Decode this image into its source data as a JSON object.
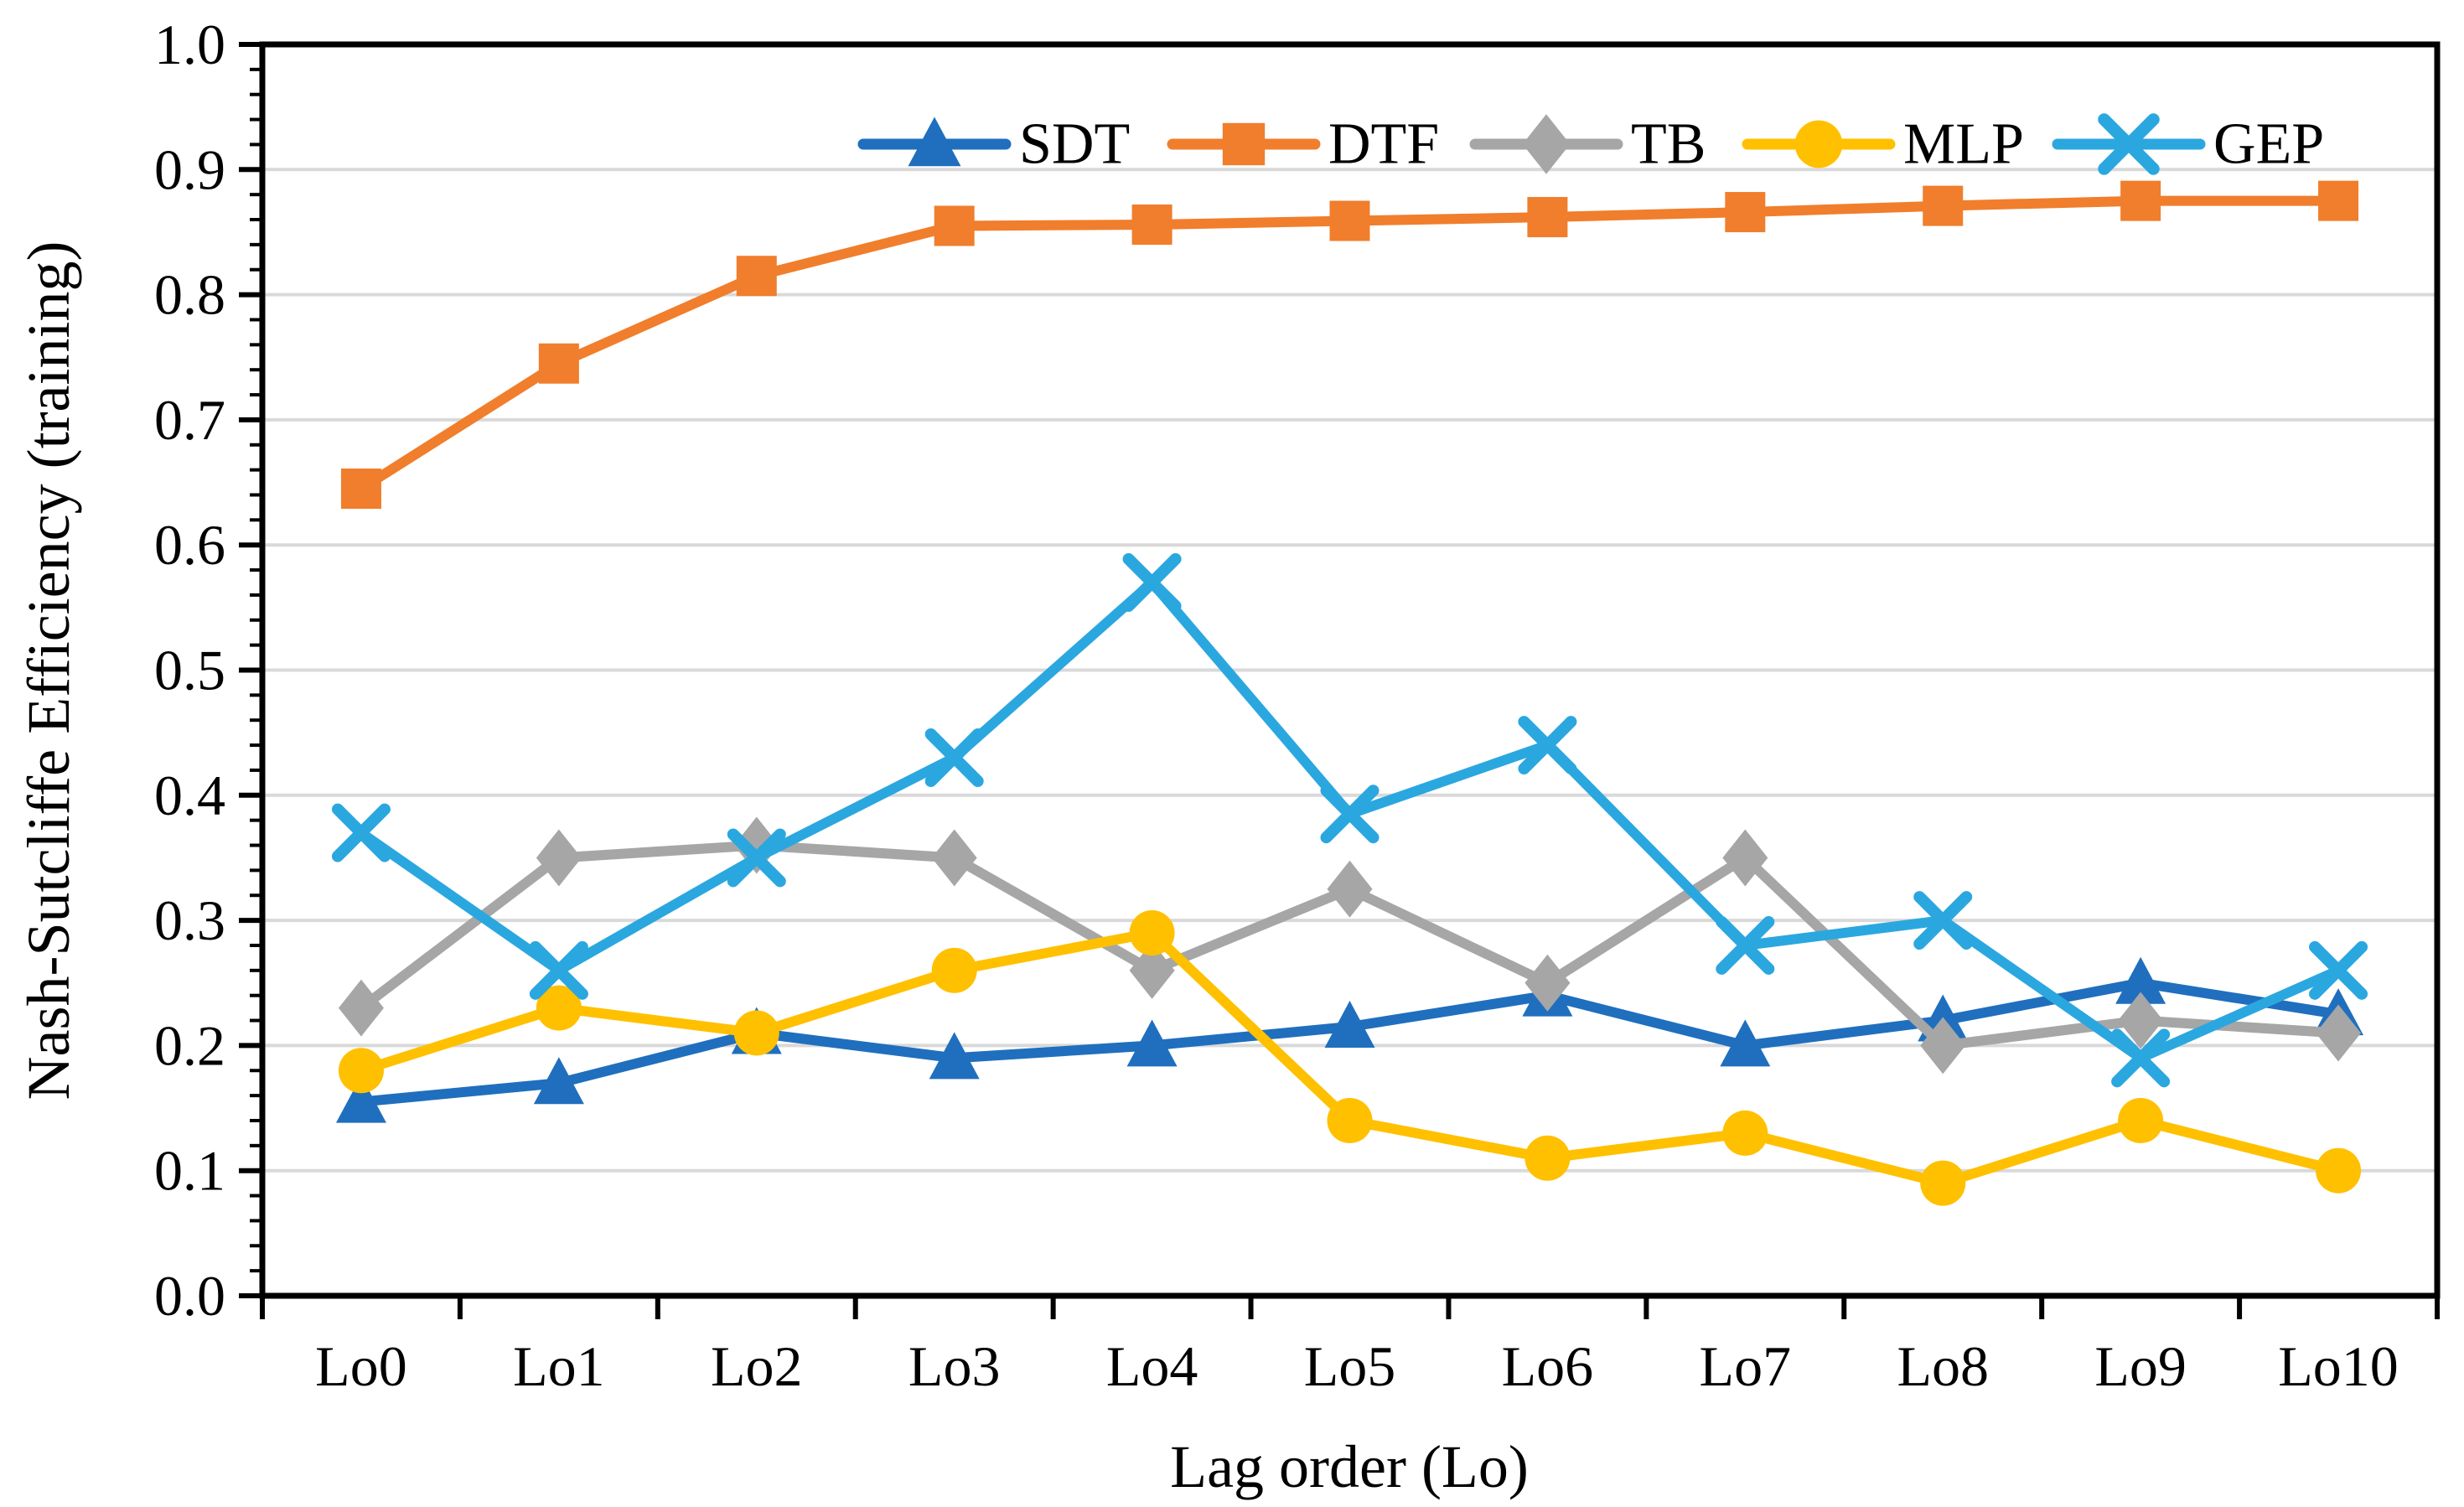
{
  "chart_data": {
    "type": "line",
    "title": "",
    "xlabel": "Lag order (Lo)",
    "ylabel": "Nash-Sutcliffe Efficiency (training)",
    "categories": [
      "Lo0",
      "Lo1",
      "Lo2",
      "Lo3",
      "Lo4",
      "Lo5",
      "Lo6",
      "Lo7",
      "Lo8",
      "Lo9",
      "Lo10"
    ],
    "ylim": [
      0.0,
      1.0
    ],
    "y_tick_labels": [
      "0.0",
      "0.1",
      "0.2",
      "0.3",
      "0.4",
      "0.5",
      "0.6",
      "0.7",
      "0.8",
      "0.9",
      "1.0"
    ],
    "y_major_tick_step": 0.1,
    "y_minor_tick_step": 0.02,
    "grid": "horizontal",
    "legend_position": "top-center-inside",
    "series": [
      {
        "name": "SDT",
        "marker": "triangle",
        "color": "#1F6FBE",
        "values": [
          0.155,
          0.17,
          0.21,
          0.19,
          0.2,
          0.215,
          0.24,
          0.2,
          0.22,
          0.25,
          0.225
        ]
      },
      {
        "name": "DTF",
        "marker": "square",
        "color": "#F07E2C",
        "values": [
          0.645,
          0.745,
          0.815,
          0.855,
          0.856,
          0.859,
          0.862,
          0.866,
          0.871,
          0.875,
          0.875
        ]
      },
      {
        "name": "TB",
        "marker": "diamond",
        "color": "#A6A6A6",
        "values": [
          0.23,
          0.35,
          0.36,
          0.35,
          0.26,
          0.325,
          0.25,
          0.35,
          0.2,
          0.22,
          0.21
        ]
      },
      {
        "name": "MLP",
        "marker": "circle",
        "color": "#FFC000",
        "values": [
          0.18,
          0.23,
          0.21,
          0.26,
          0.29,
          0.14,
          0.11,
          0.13,
          0.09,
          0.14,
          0.1
        ]
      },
      {
        "name": "GEP",
        "marker": "x",
        "color": "#2BA7DF",
        "values": [
          0.37,
          0.26,
          0.35,
          0.43,
          0.57,
          0.385,
          0.44,
          0.28,
          0.3,
          0.19,
          0.26
        ]
      }
    ],
    "colors": {
      "gridline": "#D9D9D9",
      "axis": "#000000",
      "background": "#FFFFFF",
      "text": "#000000"
    }
  }
}
